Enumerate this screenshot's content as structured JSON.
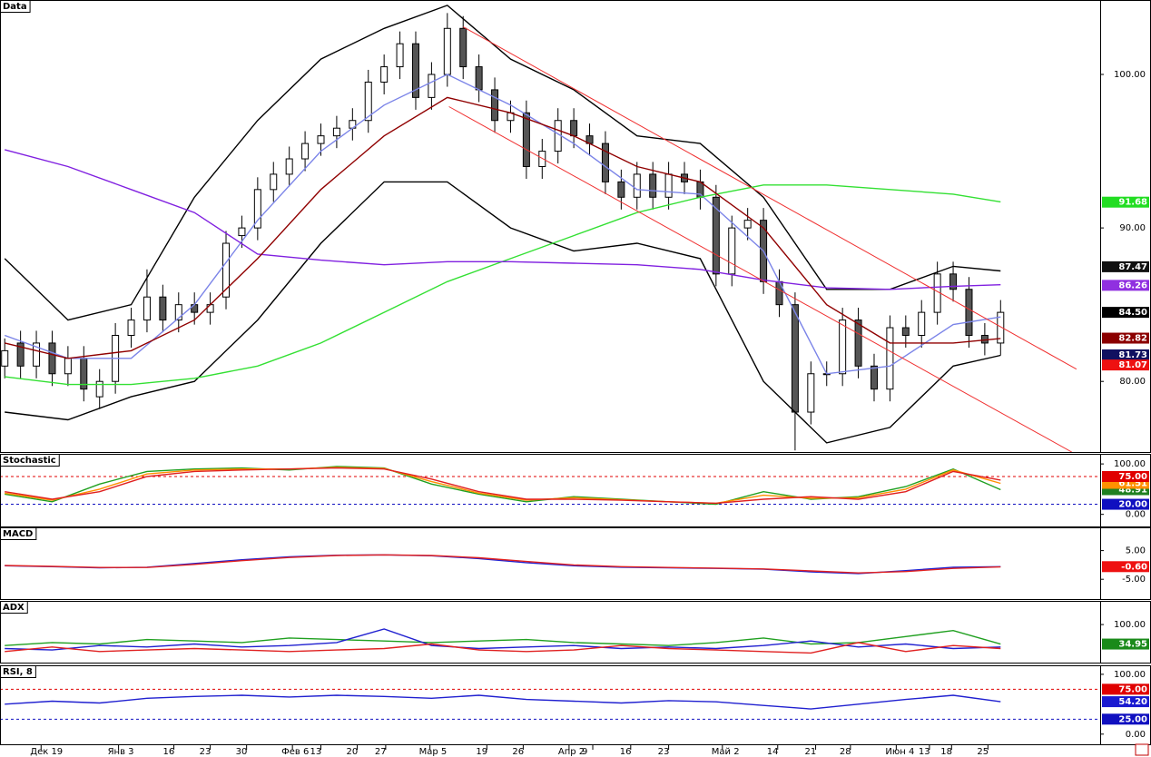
{
  "chart_data": [
    {
      "type": "candlestick",
      "title": "Data",
      "xlim": [
        -0.3,
        69.3
      ],
      "xticks": [
        {
          "value": 2.3,
          "label": "Дек 19"
        },
        {
          "value": 7.2,
          "label": "Янв 3"
        },
        {
          "value": 10.7,
          "label": "16"
        },
        {
          "value": 13.0,
          "label": "23"
        },
        {
          "value": 15.3,
          "label": "30"
        },
        {
          "value": 18.2,
          "label": "Фев 6"
        },
        {
          "value": 20.0,
          "label": "13"
        },
        {
          "value": 22.3,
          "label": "20"
        },
        {
          "value": 24.1,
          "label": "27"
        },
        {
          "value": 26.9,
          "label": "Мар 5"
        },
        {
          "value": 30.5,
          "label": "19"
        },
        {
          "value": 32.8,
          "label": "26"
        },
        {
          "value": 35.7,
          "label": "Апр 2"
        },
        {
          "value": 37.2,
          "label": "9"
        },
        {
          "value": 39.6,
          "label": "16"
        },
        {
          "value": 42.0,
          "label": "23"
        },
        {
          "value": 45.4,
          "label": "Май 2"
        },
        {
          "value": 48.9,
          "label": "14"
        },
        {
          "value": 51.3,
          "label": "21"
        },
        {
          "value": 53.5,
          "label": "28"
        },
        {
          "value": 56.4,
          "label": "Июн 4"
        },
        {
          "value": 58.5,
          "label": "13"
        },
        {
          "value": 59.9,
          "label": "18"
        },
        {
          "value": 62.2,
          "label": "25"
        }
      ],
      "ylim": [
        75.4,
        104.85
      ],
      "yticks": [
        {
          "value": 80,
          "label": "80.00"
        },
        {
          "value": 90,
          "label": "90.00"
        },
        {
          "value": 100,
          "label": "100.00"
        }
      ],
      "open": [
        81,
        82.5,
        81,
        82.5,
        80.5,
        81.5,
        79,
        80,
        83,
        84,
        85.5,
        84,
        85,
        84.5,
        85.5,
        89.5,
        90,
        92.5,
        93.5,
        94.5,
        95.5,
        96,
        96.5,
        97,
        99.5,
        100.5,
        102,
        98.5,
        100,
        103,
        100.5,
        99,
        97,
        97.5,
        94,
        95,
        97,
        96,
        95.5,
        93,
        92,
        93.5,
        92,
        93.5,
        93,
        92,
        87,
        90,
        90.5,
        86.5,
        85,
        78,
        80.5,
        80.5,
        84,
        81,
        79.5,
        83.5,
        83,
        84.5,
        87,
        86,
        83,
        82.5
      ],
      "high": [
        82.8,
        83.3,
        83.3,
        83.3,
        82.3,
        82.3,
        80.8,
        83.8,
        84.8,
        87.3,
        86.3,
        85.8,
        85.8,
        85.8,
        89.8,
        90.8,
        93.3,
        94.3,
        95.3,
        96.3,
        96.8,
        97.3,
        97.8,
        100.3,
        101.3,
        102.8,
        102.8,
        100.8,
        104,
        103.8,
        101.3,
        99.8,
        98.3,
        98.3,
        95.8,
        97.8,
        97.8,
        96.8,
        96.3,
        93.8,
        94.3,
        94.3,
        94.3,
        94.3,
        93.8,
        92.8,
        90.8,
        91.3,
        91.3,
        87.3,
        85.8,
        81.3,
        81.3,
        84.8,
        84.8,
        81.8,
        84.3,
        84.3,
        85.3,
        87.8,
        87.8,
        86.8,
        83.8,
        85.3
      ],
      "low": [
        80.2,
        80.2,
        80.2,
        79.7,
        79.7,
        78.7,
        78.2,
        79.2,
        82.2,
        83.2,
        83.2,
        83.2,
        83.7,
        83.7,
        84.7,
        88.7,
        89.2,
        91.7,
        92.7,
        93.7,
        94.7,
        95.2,
        95.7,
        96.2,
        98.7,
        99.7,
        97.7,
        97.7,
        99.2,
        99.7,
        98.2,
        96.2,
        96.2,
        93.2,
        93.2,
        94.2,
        95.2,
        94.7,
        92.2,
        91.2,
        91.2,
        91.2,
        91.2,
        92.2,
        91.2,
        86.2,
        86.2,
        89.2,
        85.7,
        84.2,
        75.5,
        77.2,
        79.7,
        79.7,
        80.2,
        78.7,
        78.7,
        82.2,
        82.2,
        83.7,
        85.2,
        82.2,
        81.7,
        81.7
      ],
      "close": [
        82,
        81,
        82.5,
        80.5,
        81.5,
        79.5,
        80,
        83,
        84,
        85.5,
        84,
        85,
        84.5,
        85,
        89,
        90,
        92.5,
        93.5,
        94.5,
        95.5,
        96,
        96.5,
        97,
        99.5,
        100.5,
        102,
        98.5,
        100,
        103,
        100.5,
        99,
        97,
        97.5,
        94,
        95,
        97,
        96,
        95.5,
        93,
        92,
        93.5,
        92,
        93.5,
        93,
        92,
        87,
        90,
        90.5,
        86.5,
        85,
        78,
        80.5,
        80.5,
        84,
        81,
        79.5,
        83.5,
        83,
        84.5,
        87,
        86,
        83,
        82.5,
        84.5
      ],
      "series": [
        {
          "color": "#000000",
          "x": [
            0,
            4,
            8,
            12,
            16,
            20,
            24,
            28,
            32,
            36,
            40,
            44,
            48,
            52,
            56,
            60,
            63
          ],
          "values": [
            88,
            84,
            85,
            92,
            97,
            101,
            103,
            104.5,
            101,
            99,
            96,
            95.5,
            92,
            86,
            86,
            87.5,
            87.2
          ]
        },
        {
          "color": "#000000",
          "x": [
            0,
            4,
            8,
            12,
            16,
            20,
            24,
            28,
            32,
            36,
            40,
            44,
            48,
            52,
            56,
            60,
            63
          ],
          "values": [
            78,
            77.5,
            79,
            80,
            84,
            89,
            93,
            93,
            90,
            88.5,
            89,
            88,
            80,
            76,
            77,
            81,
            81.7
          ]
        },
        {
          "color": "#7b84e8",
          "x": [
            0,
            4,
            8,
            12,
            16,
            20,
            24,
            28,
            32,
            36,
            40,
            44,
            48,
            52,
            56,
            60,
            63
          ],
          "values": [
            83,
            81.5,
            81.5,
            85,
            90.5,
            95,
            98,
            100,
            98,
            95.5,
            92.5,
            92.2,
            88.5,
            80.5,
            81,
            83.7,
            84.2
          ]
        },
        {
          "color": "#33e033",
          "x": [
            0,
            4,
            8,
            12,
            16,
            20,
            24,
            28,
            32,
            36,
            40,
            44,
            48,
            52,
            56,
            60,
            63
          ],
          "values": [
            80.3,
            79.8,
            79.8,
            80.2,
            81,
            82.5,
            84.5,
            86.5,
            88,
            89.5,
            91,
            92,
            92.8,
            92.8,
            92.5,
            92.2,
            91.7
          ]
        },
        {
          "color": "#8020e0",
          "x": [
            0,
            4,
            8,
            12,
            16,
            20,
            24,
            28,
            32,
            36,
            40,
            44,
            48,
            52,
            56,
            60,
            63
          ],
          "values": [
            95.1,
            94,
            92.5,
            91,
            88.3,
            87.9,
            87.6,
            87.8,
            87.8,
            87.7,
            87.6,
            87.3,
            86.6,
            86.1,
            86,
            86.2,
            86.3
          ]
        },
        {
          "color": "#900000",
          "x": [
            0,
            4,
            8,
            12,
            16,
            20,
            24,
            28,
            32,
            36,
            40,
            44,
            48,
            52,
            56,
            60,
            63
          ],
          "values": [
            82.5,
            81.5,
            82,
            84,
            88,
            92.5,
            96,
            98.5,
            97.5,
            96,
            94,
            93,
            90,
            85,
            82.5,
            82.5,
            82.8
          ]
        },
        {
          "color": "#f03030",
          "x": [
            29,
            67.8
          ],
          "values": [
            103.1,
            80.8
          ]
        },
        {
          "color": "#f03030",
          "x": [
            28.1,
            67.5
          ],
          "values": [
            97.9,
            75.4
          ]
        }
      ],
      "markers": [
        {
          "value": 91.68,
          "label": "91.68",
          "color": "#22dd22"
        },
        {
          "value": 87.47,
          "label": "87.47",
          "color": "#111111"
        },
        {
          "value": 86.26,
          "label": "86.26",
          "color": "#9030e0"
        },
        {
          "value": 84.5,
          "label": "84.50",
          "color": "#000000"
        },
        {
          "value": 82.82,
          "label": "82.82",
          "color": "#8b0000"
        },
        {
          "value": 81.73,
          "label": "81.73",
          "color": "#101060"
        },
        {
          "value": 81.07,
          "label": "81.07",
          "color": "#ee1111"
        }
      ]
    },
    {
      "type": "line",
      "title": "Stochastic",
      "ylim": [
        -24,
        120
      ],
      "yticks": [
        {
          "value": 0,
          "label": "0.00"
        },
        {
          "value": 100,
          "label": "100.00"
        }
      ],
      "x": [
        0,
        3,
        6,
        9,
        12,
        15,
        18,
        21,
        24,
        27,
        30,
        33,
        36,
        39,
        42,
        45,
        48,
        51,
        54,
        57,
        60,
        63
      ],
      "series": [
        {
          "color": "#20a020",
          "values": [
            40,
            25,
            60,
            85,
            90,
            92,
            88,
            95,
            92,
            60,
            40,
            25,
            35,
            30,
            25,
            20,
            45,
            30,
            35,
            55,
            90,
            48.91
          ]
        },
        {
          "color": "#ff9000",
          "values": [
            42,
            28,
            50,
            80,
            88,
            90,
            90,
            93,
            91,
            65,
            42,
            28,
            33,
            29,
            25,
            22,
            38,
            32,
            33,
            50,
            88,
            61.51
          ]
        },
        {
          "color": "#e02020",
          "values": [
            45,
            30,
            45,
            75,
            85,
            88,
            90,
            92,
            90,
            70,
            45,
            30,
            30,
            28,
            25,
            22,
            30,
            35,
            30,
            45,
            85,
            68
          ]
        }
      ],
      "markers": [
        {
          "value": 48.91,
          "label": "48.91",
          "color": "#208020"
        },
        {
          "value": 61.51,
          "label": "61.51",
          "color": "#ff9000"
        }
      ],
      "levels": [
        {
          "value": 75,
          "label": "75.00",
          "color": "#e00000"
        },
        {
          "value": 20,
          "label": "20.00",
          "color": "#1010c0"
        }
      ]
    },
    {
      "type": "line",
      "title": "MACD",
      "ylim": [
        -11.9,
        13.1
      ],
      "yticks": [
        {
          "value": 5,
          "label": "5.00"
        },
        {
          "value": -5,
          "label": "-5.00"
        }
      ],
      "x": [
        0,
        3,
        6,
        9,
        12,
        15,
        18,
        21,
        24,
        27,
        30,
        33,
        36,
        39,
        42,
        45,
        48,
        51,
        54,
        57,
        60,
        63
      ],
      "series": [
        {
          "color": "#2020d0",
          "values": [
            -0.3,
            -0.6,
            -1,
            -0.8,
            0.5,
            1.8,
            2.8,
            3.4,
            3.5,
            3.2,
            2.2,
            0.8,
            -0.3,
            -0.8,
            -1.0,
            -1.2,
            -1.5,
            -2.4,
            -3,
            -2,
            -0.8,
            -0.6
          ]
        },
        {
          "color": "#e02020",
          "values": [
            -0.2,
            -0.5,
            -0.9,
            -0.9,
            0.2,
            1.5,
            2.6,
            3.3,
            3.5,
            3.3,
            2.5,
            1.2,
            0,
            -0.6,
            -0.9,
            -1.1,
            -1.4,
            -2.1,
            -2.8,
            -2.3,
            -1.2,
            -0.7
          ]
        }
      ],
      "markers": [
        {
          "value": -0.6,
          "label": "-0.60",
          "color": "#ee1111"
        }
      ]
    },
    {
      "type": "line",
      "title": "ADX",
      "ylim": [
        -27,
        179
      ],
      "yticks": [
        {
          "value": 100,
          "label": "100.00"
        }
      ],
      "x": [
        0,
        3,
        6,
        9,
        12,
        15,
        18,
        21,
        24,
        27,
        30,
        33,
        36,
        39,
        42,
        45,
        48,
        51,
        54,
        57,
        60,
        63
      ],
      "series": [
        {
          "color": "#20a020",
          "values": [
            30,
            40,
            35,
            50,
            45,
            40,
            55,
            50,
            45,
            40,
            45,
            50,
            40,
            35,
            30,
            40,
            55,
            35,
            40,
            60,
            80,
            34.95
          ]
        },
        {
          "color": "#2020d0",
          "values": [
            20,
            15,
            30,
            25,
            35,
            25,
            30,
            40,
            85,
            30,
            20,
            25,
            30,
            20,
            25,
            20,
            30,
            45,
            25,
            35,
            20,
            25
          ]
        },
        {
          "color": "#e02020",
          "values": [
            10,
            25,
            10,
            15,
            20,
            15,
            10,
            15,
            20,
            35,
            15,
            10,
            15,
            30,
            20,
            15,
            10,
            5,
            40,
            10,
            30,
            20
          ]
        }
      ],
      "markers": [
        {
          "value": 34.95,
          "label": "34.95",
          "color": "#1a8a1a"
        }
      ]
    },
    {
      "type": "line",
      "title": "RSI, 8",
      "ylim": [
        -17,
        115
      ],
      "yticks": [
        {
          "value": 0,
          "label": "0.00"
        },
        {
          "value": 100,
          "label": "100.00"
        }
      ],
      "x": [
        0,
        3,
        6,
        9,
        12,
        15,
        18,
        21,
        24,
        27,
        30,
        33,
        36,
        39,
        42,
        45,
        48,
        51,
        54,
        57,
        60,
        63
      ],
      "series": [
        {
          "color": "#2020d0",
          "values": [
            50,
            55,
            52,
            60,
            63,
            65,
            62,
            65,
            63,
            60,
            65,
            58,
            55,
            52,
            56,
            54,
            48,
            42,
            50,
            58,
            65,
            54.2
          ]
        }
      ],
      "markers": [
        {
          "value": 54.2,
          "label": "54.20",
          "color": "#1a1ad0"
        }
      ],
      "levels": [
        {
          "value": 75,
          "label": "75.00",
          "color": "#e00000"
        },
        {
          "value": 25,
          "label": "25.00",
          "color": "#1010c0"
        }
      ]
    }
  ]
}
